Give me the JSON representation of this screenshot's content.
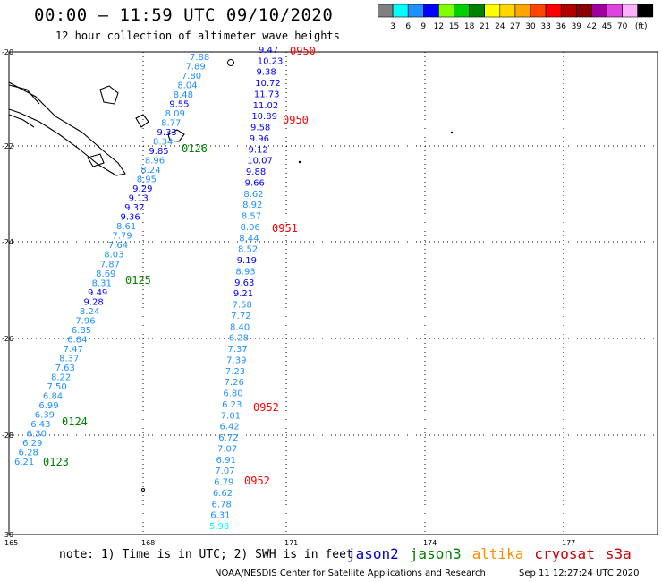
{
  "header": {
    "title": "00:00 – 11:59 UTC 09/10/2020",
    "subtitle": "12 hour collection of altimeter wave heights"
  },
  "colorbar": {
    "colors": [
      "#808080",
      "#00ffff",
      "#1e90ff",
      "#0000ff",
      "#7fff00",
      "#00d000",
      "#008000",
      "#ffff00",
      "#ffd700",
      "#ffa500",
      "#ff4500",
      "#ff0000",
      "#b00000",
      "#8b0000",
      "#a000a0",
      "#dd44dd",
      "#ffb0ff",
      "#000000"
    ],
    "labels": [
      "3",
      "6",
      "9",
      "12",
      "15",
      "18",
      "21",
      "24",
      "27",
      "30",
      "33",
      "36",
      "39",
      "42",
      "45",
      "70",
      "(ft)"
    ]
  },
  "axes": {
    "lat_labels": [
      "-20",
      "-22",
      "-24",
      "-26",
      "-28",
      "-30"
    ],
    "lon_labels": [
      "165",
      "168",
      "171",
      "174",
      "177"
    ]
  },
  "times": [
    {
      "text": "0950",
      "color": "#ff0000"
    },
    {
      "text": "0950",
      "color": "#ff0000"
    },
    {
      "text": "0951",
      "color": "#ff0000"
    },
    {
      "text": "0952",
      "color": "#ff0000"
    },
    {
      "text": "0952",
      "color": "#ff0000"
    },
    {
      "text": "0126",
      "color": "#008000"
    },
    {
      "text": "0125",
      "color": "#008000"
    },
    {
      "text": "0124",
      "color": "#008000"
    },
    {
      "text": "0123",
      "color": "#008000"
    }
  ],
  "track_a": [
    "7.88",
    "7.89",
    "7.80",
    "8.04",
    "8.48",
    "9.55",
    "8.09",
    "8.77",
    "9.33",
    "8.34",
    "9.85",
    "8.96",
    "8.24",
    "8.95",
    "9.29",
    "9.13",
    "9.32",
    "9.36",
    "8.61",
    "7.79",
    "7.64",
    "8.03",
    "7.87",
    "8.69",
    "8.31",
    "9.49",
    "9.28",
    "8.24",
    "7.96",
    "6.85",
    "6.84",
    "7.47",
    "8.37",
    "7.63",
    "8.22",
    "7.50",
    "6.84",
    "6.99",
    "6.39",
    "6.43",
    "6.30",
    "6.29",
    "6.28",
    "6.21"
  ],
  "track_b": [
    "9.47",
    "10.23",
    "9.38",
    "10.72",
    "11.73",
    "11.02",
    "10.89",
    "9.58",
    "9.96",
    "9.12",
    "10.07",
    "9.88",
    "9.66",
    "8.62",
    "8.92",
    "8.57",
    "8.06",
    "8.44",
    "8.52",
    "9.19",
    "8.93",
    "9.63",
    "9.21",
    "7.58",
    "7.72",
    "8.40",
    "6.28",
    "7.37",
    "7.39",
    "7.23",
    "7.26",
    "6.80",
    "6.23",
    "7.01",
    "6.42",
    "6.72",
    "7.07",
    "6.91",
    "7.07",
    "6.79",
    "6.62",
    "6.78",
    "6.31",
    "5.98"
  ],
  "footer": {
    "note": "note: 1) Time is in UTC; 2) SWH is in feet",
    "credit": "NOAA/NESDIS Center for Satellite Applications and Research",
    "stamp": "Sep 11 12:27:24 UTC 2020"
  },
  "legend": [
    {
      "name": "jason2",
      "color": "#0000cc"
    },
    {
      "name": "jason3",
      "color": "#008000"
    },
    {
      "name": "altika",
      "color": "#ff8c00"
    },
    {
      "name": "cryosat",
      "color": "#cc0000"
    },
    {
      "name": "s3a",
      "color": "#cc0000"
    }
  ]
}
